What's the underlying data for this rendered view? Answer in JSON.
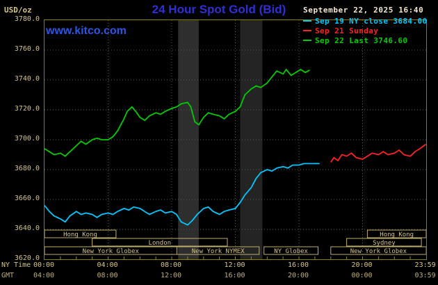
{
  "header": {
    "unit_label": "USD/oz",
    "title": "24 Hour Spot Gold (Bid)",
    "datetime": "September 22, 2025 16:40",
    "watermark": "www.kitco.com"
  },
  "legend": [
    {
      "label": "Sep 19 NY close 3684.00",
      "color": "#00c8ff"
    },
    {
      "label": "Sep 21 Sunday",
      "color": "#ff2222"
    },
    {
      "label": "Sep 22 Last 3746.60",
      "color": "#00cc00"
    }
  ],
  "axes": {
    "ny_time_label": "NY Time",
    "gmt_label": "GMT",
    "x_ticks_ny": [
      "00:00",
      "04:00",
      "08:00",
      "12:00",
      "16:00",
      "20:00",
      "23:59"
    ],
    "x_ticks_gmt": [
      "04:00",
      "08:00",
      "12:00",
      "16:00",
      "20:00",
      "00:00",
      "03:59"
    ],
    "y_ticks": [
      "3780.0",
      "3760.0",
      "3740.0",
      "3720.0",
      "3700.0",
      "3680.0",
      "3660.0",
      "3640.0",
      "3620.0"
    ]
  },
  "sessions": {
    "rows": [
      [
        {
          "label": "Hong Kong",
          "start": 0,
          "end": 4.5
        },
        {
          "label": "Hong Kong",
          "start": 20.3,
          "end": 24
        }
      ],
      [
        {
          "label": "London",
          "start": 3.0,
          "end": 11.5
        },
        {
          "label": "Sydney",
          "start": 19.0,
          "end": 23.7
        }
      ],
      [
        {
          "label": "New York Globex",
          "start": 0,
          "end": 8.33
        },
        {
          "label": "New York NYMEX",
          "start": 8.33,
          "end": 13.5
        },
        {
          "label": "NY Globex",
          "start": 13.8,
          "end": 17.2
        },
        {
          "label": "New York Globex",
          "start": 18.0,
          "end": 24
        }
      ]
    ]
  },
  "chart_data": {
    "type": "line",
    "title": "24 Hour Spot Gold (Bid)",
    "xlabel": "NY Time (hours)",
    "ylabel": "USD/oz",
    "xlim": [
      0,
      24
    ],
    "ylim": [
      3620,
      3780
    ],
    "grid": true,
    "legend_position": "top-right",
    "bands": [
      {
        "x0": 8.4,
        "x1": 9.7,
        "color": "#2e2e2e"
      },
      {
        "x0": 12.3,
        "x1": 13.7,
        "color": "#242424"
      }
    ],
    "series": [
      {
        "id": "sep19",
        "name": "Sep 19 NY close 3684.00",
        "color": "#00c8ff",
        "x": [
          0,
          0.3,
          0.6,
          1.0,
          1.3,
          1.6,
          2.0,
          2.3,
          2.6,
          3.0,
          3.3,
          3.6,
          4.0,
          4.3,
          4.6,
          5.0,
          5.3,
          5.6,
          6.0,
          6.3,
          6.6,
          7.0,
          7.3,
          7.6,
          8.0,
          8.3,
          8.6,
          9.0,
          9.3,
          9.6,
          10.0,
          10.3,
          10.6,
          11.0,
          11.3,
          11.6,
          12.0,
          12.3,
          12.6,
          13.0,
          13.3,
          13.6,
          14.0,
          14.3,
          14.6,
          15.0,
          15.3,
          15.6,
          16.0,
          16.3,
          16.6,
          17.0,
          17.3
        ],
        "y": [
          3656,
          3652,
          3649,
          3647,
          3645,
          3649,
          3652,
          3650,
          3651,
          3650,
          3648,
          3650,
          3651,
          3650,
          3652,
          3654,
          3653,
          3655,
          3654,
          3652,
          3650,
          3652,
          3653,
          3651,
          3652,
          3650,
          3645,
          3643,
          3646,
          3650,
          3654,
          3655,
          3652,
          3650,
          3652,
          3653,
          3654,
          3658,
          3663,
          3668,
          3674,
          3678,
          3680,
          3679,
          3681,
          3682,
          3681,
          3683,
          3683,
          3684,
          3684,
          3684,
          3684
        ]
      },
      {
        "id": "sep21",
        "name": "Sep 21 Sunday",
        "color": "#ff2222",
        "x": [
          18.0,
          18.2,
          18.45,
          18.7,
          19.0,
          19.3,
          19.6,
          20.0,
          20.3,
          20.6,
          21.0,
          21.3,
          21.6,
          22.0,
          22.3,
          22.6,
          23.0,
          23.3,
          23.6,
          23.98
        ],
        "y": [
          3685,
          3688,
          3686,
          3690,
          3689,
          3691,
          3688,
          3687,
          3689,
          3691,
          3690,
          3692,
          3690,
          3691,
          3693,
          3690,
          3689,
          3692,
          3694,
          3697
        ]
      },
      {
        "id": "sep22",
        "name": "Sep 22 Last 3746.60",
        "color": "#00cc00",
        "x": [
          0,
          0.3,
          0.6,
          1.0,
          1.3,
          1.6,
          2.0,
          2.3,
          2.6,
          3.0,
          3.3,
          3.6,
          4.0,
          4.3,
          4.6,
          5.0,
          5.2,
          5.5,
          5.8,
          6.0,
          6.3,
          6.6,
          7.0,
          7.3,
          7.6,
          8.0,
          8.3,
          8.6,
          9.0,
          9.2,
          9.45,
          9.7,
          10.0,
          10.3,
          10.6,
          11.0,
          11.3,
          11.6,
          12.0,
          12.3,
          12.6,
          13.0,
          13.3,
          13.6,
          14.0,
          14.3,
          14.6,
          15.0,
          15.2,
          15.5,
          15.8,
          16.1,
          16.4,
          16.67
        ],
        "y": [
          3694,
          3692,
          3690,
          3691,
          3689,
          3692,
          3696,
          3699,
          3697,
          3700,
          3701,
          3700,
          3700,
          3702,
          3706,
          3714,
          3719,
          3722,
          3718,
          3715,
          3713,
          3716,
          3718,
          3717,
          3719,
          3721,
          3722,
          3724,
          3725,
          3722,
          3712,
          3710,
          3715,
          3718,
          3717,
          3716,
          3714,
          3717,
          3719,
          3722,
          3730,
          3734,
          3736,
          3735,
          3738,
          3742,
          3746,
          3744,
          3747,
          3743,
          3745,
          3747,
          3745,
          3746.6
        ]
      }
    ]
  }
}
